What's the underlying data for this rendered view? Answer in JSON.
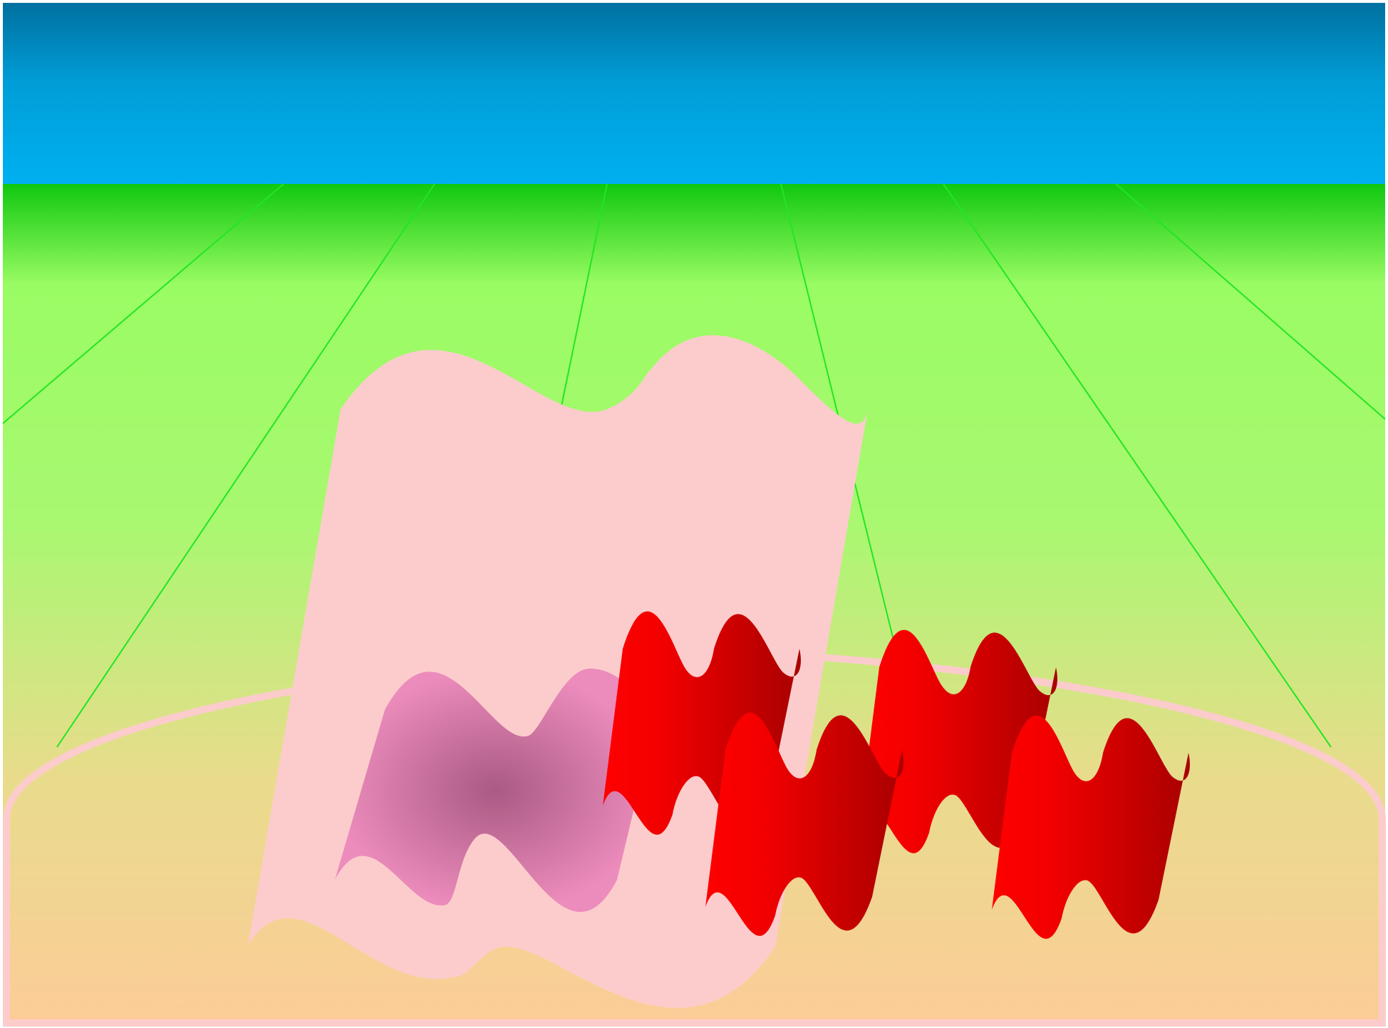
{
  "colors": {
    "sky_top": "#0070a0",
    "sky_mid": "#009ed8",
    "sky_bottom": "#00b0f0",
    "grass_top": "#10c810",
    "grass_light": "#9afc64",
    "ground_mid": "#e8dc8c",
    "ground_bottom": "#fccc98",
    "ray_line": "#22e622",
    "ring_outline": "#fccccc",
    "big_flag": "#fccccc",
    "pink_flag_center": "#aa5a84",
    "pink_flag_edge": "#ec8cbc",
    "red_flag_light": "#ff0000",
    "red_flag_dark": "#a80000"
  },
  "icons": {
    "big_flag": "waving-flag-icon",
    "small_flags": "waving-flag-icon"
  }
}
